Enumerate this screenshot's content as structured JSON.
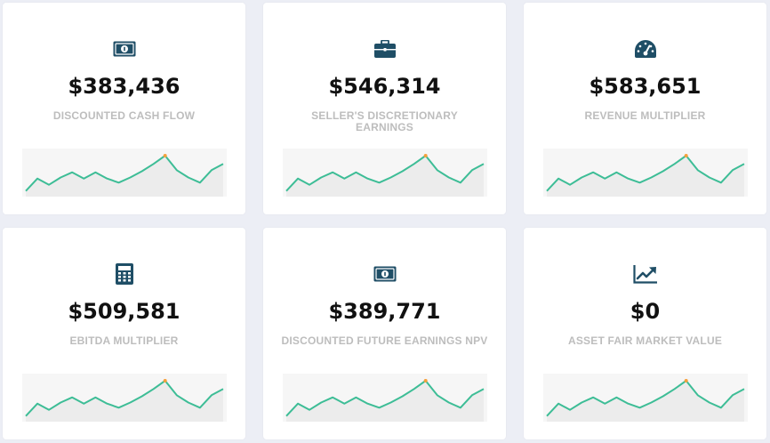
{
  "colors": {
    "icon": "#1f4e66",
    "spark_line": "#3dbd96",
    "spark_fill": "#ececec",
    "spark_peak": "#f5a03c"
  },
  "sparkline": {
    "values": [
      2,
      14,
      8,
      15,
      20,
      14,
      20,
      14,
      10,
      15,
      21,
      28,
      36,
      22,
      15,
      10,
      22,
      28
    ],
    "peak_index": 12
  },
  "cards": [
    {
      "icon": "money-icon",
      "value": "$383,436",
      "label": "DISCOUNTED CASH FLOW"
    },
    {
      "icon": "briefcase-icon",
      "value": "$546,314",
      "label": "SELLER'S DISCRETIONARY EARNINGS"
    },
    {
      "icon": "gauge-icon",
      "value": "$583,651",
      "label": "REVENUE MULTIPLIER"
    },
    {
      "icon": "calculator-icon",
      "value": "$509,581",
      "label": "EBITDA MULTIPLIER"
    },
    {
      "icon": "money-icon",
      "value": "$389,771",
      "label": "DISCOUNTED FUTURE EARNINGS NPV"
    },
    {
      "icon": "chart-line-icon",
      "value": "$0",
      "label": "ASSET FAIR MARKET VALUE"
    }
  ]
}
